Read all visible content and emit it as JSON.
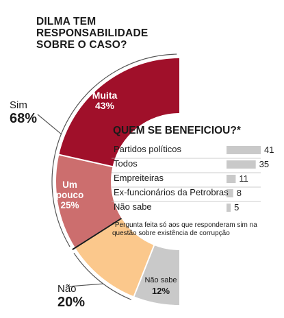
{
  "title_lines": [
    "DILMA TEM",
    "RESPONSABILIDADE",
    "SOBRE O CASO?"
  ],
  "groups": [
    {
      "name": "Sim",
      "value_label": "68%"
    },
    {
      "name": "Não",
      "value_label": "20%"
    }
  ],
  "colors": {
    "muita": "#a0102a",
    "um_pouco": "#cc6e6e",
    "nao": "#fbc88c",
    "nao_sabe": "#c9c9c9",
    "bar": "#c9c9c9",
    "separator": "#1a1a1a",
    "bracket": "#555555"
  },
  "chart_data": [
    {
      "type": "pie",
      "variant": "half-donut",
      "slices": [
        {
          "name": "Muita",
          "value": 43,
          "value_label": "43%",
          "color": "#a0102a",
          "label_color": "#ffffff"
        },
        {
          "name": "Um pouco",
          "value": 25,
          "value_label": "25%",
          "color": "#cc6e6e",
          "label_color": "#ffffff"
        },
        {
          "name": "Não",
          "value": 20,
          "value_label": "",
          "color": "#fbc88c",
          "label_color": "#1a1a1a"
        },
        {
          "name": "Não sabe",
          "value": 12,
          "value_label": "12%",
          "color": "#c9c9c9",
          "label_color": "#1a1a1a"
        }
      ]
    },
    {
      "type": "bar",
      "orientation": "horizontal",
      "title": "QUEM SE BENEFICIOU?*",
      "categories": [
        "Partidos políticos",
        "Todos",
        "Empreiteiras",
        "Ex-funcionários da Petrobras",
        "Não sabe"
      ],
      "values": [
        41,
        35,
        11,
        8,
        5
      ],
      "footnote": "*Pergunta feita só aos que responderam sim na questão sobre existência de corrupção"
    }
  ]
}
